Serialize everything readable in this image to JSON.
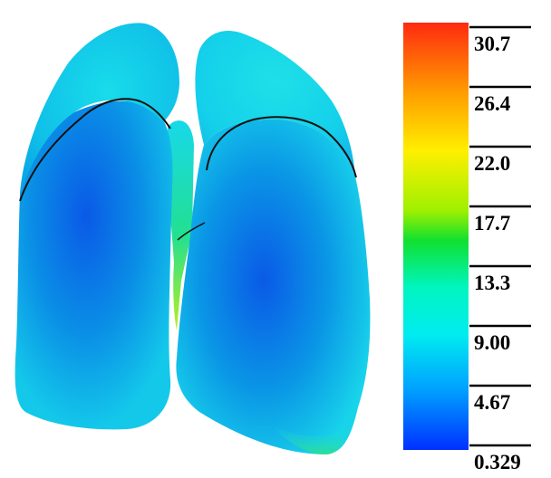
{
  "colorbar": {
    "ticks": [
      "30.7",
      "26.4",
      "22.0",
      "17.7",
      "13.3",
      "9.00",
      "4.67",
      "0.329"
    ],
    "gradient_stops": [
      {
        "offset": 0.0,
        "color": "#ff2a10"
      },
      {
        "offset": 0.16,
        "color": "#ff9a00"
      },
      {
        "offset": 0.3,
        "color": "#ffef00"
      },
      {
        "offset": 0.44,
        "color": "#9ef000"
      },
      {
        "offset": 0.51,
        "color": "#10e030"
      },
      {
        "offset": 0.62,
        "color": "#00f5c0"
      },
      {
        "offset": 0.73,
        "color": "#00ecf0"
      },
      {
        "offset": 0.86,
        "color": "#00a0ff"
      },
      {
        "offset": 1.0,
        "color": "#0030ff"
      }
    ]
  },
  "lungs": {
    "surface_colors": {
      "light": "#18dcea",
      "mid": "#0ab0e6",
      "deep": "#0a5ae6",
      "green": "#22e070",
      "yellow_green": "#b8f020",
      "fissure": "#111111"
    }
  }
}
